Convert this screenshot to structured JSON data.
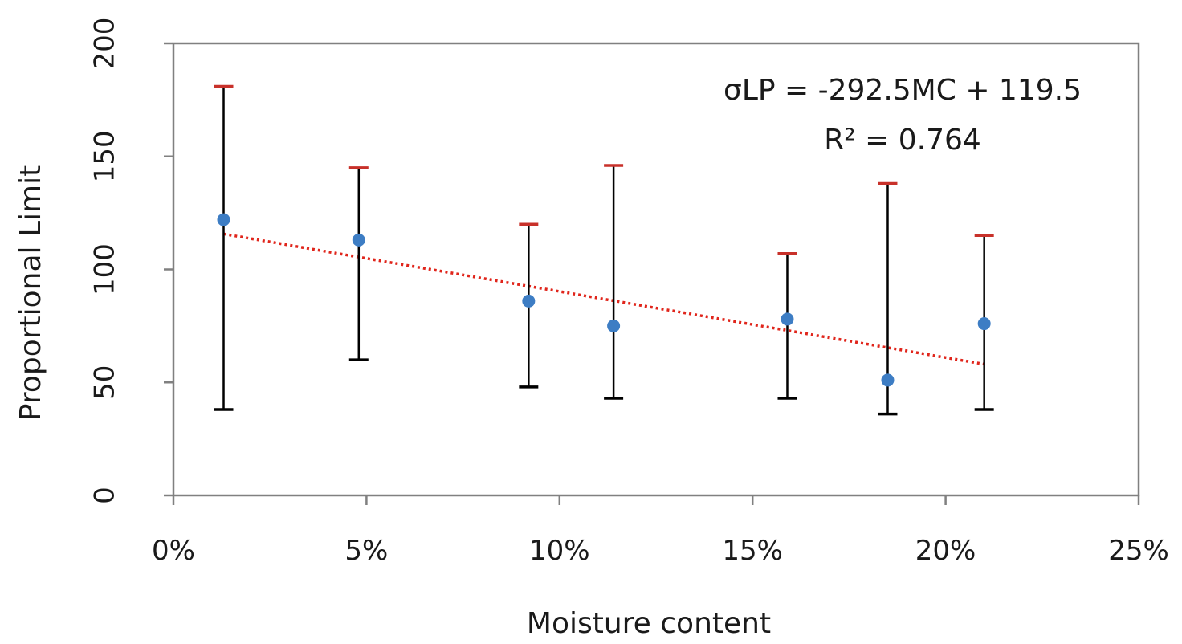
{
  "chart_data": {
    "type": "scatter",
    "xlabel": "Moisture content",
    "ylabel": "Proportional Limit",
    "xlim": [
      0,
      0.25
    ],
    "ylim": [
      0,
      200
    ],
    "x_ticks": [
      0,
      0.05,
      0.1,
      0.15,
      0.2,
      0.25
    ],
    "x_tick_labels": [
      "0%",
      "5%",
      "10%",
      "15%",
      "20%",
      "25%"
    ],
    "y_ticks": [
      0,
      50,
      100,
      150,
      200
    ],
    "y_tick_labels": [
      "0",
      "50",
      "100",
      "150",
      "200"
    ],
    "grid": false,
    "legend": "none",
    "colors": {
      "point": "#3d7dc4",
      "trendline": "#e0251b",
      "error_upper_cap": "#c8312a",
      "error_lower_cap": "#000000",
      "error_bar": "#000000",
      "frame": "#808080"
    },
    "points": [
      {
        "x": 0.013,
        "y": 122,
        "upper": 181,
        "lower": 38
      },
      {
        "x": 0.048,
        "y": 113,
        "upper": 145,
        "lower": 60
      },
      {
        "x": 0.092,
        "y": 86,
        "upper": 120,
        "lower": 48
      },
      {
        "x": 0.114,
        "y": 75,
        "upper": 146,
        "lower": 43
      },
      {
        "x": 0.159,
        "y": 78,
        "upper": 107,
        "lower": 43
      },
      {
        "x": 0.185,
        "y": 51,
        "upper": 138,
        "lower": 36
      },
      {
        "x": 0.21,
        "y": 76,
        "upper": 115,
        "lower": 38
      }
    ],
    "trendline": {
      "style": "dotted",
      "slope": -292.5,
      "intercept": 119.5,
      "x_range": [
        0.013,
        0.21
      ],
      "equation": "σLP = -292.5MC + 119.5",
      "r2_label": "R² = 0.764"
    }
  }
}
